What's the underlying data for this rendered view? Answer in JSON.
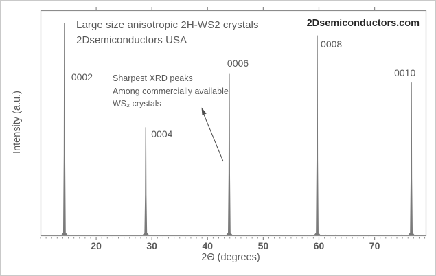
{
  "header": {
    "title_line1": "Large size anisotropic 2H-WS2 crystals",
    "title_line2": "2Dsemiconductors USA",
    "watermark": "2Dsemiconductors.com"
  },
  "annotation": {
    "line1": "Sharpest XRD peaks",
    "line2": "Among commercially available",
    "line3": "WS₂ crystals"
  },
  "chart_data": {
    "type": "line",
    "subtype": "xrd-powder-pattern",
    "title": "Large size anisotropic 2H-WS2 crystals — 2Dsemiconductors USA",
    "xlabel": "2Θ (degrees)",
    "ylabel": "Intensity (a.u.)",
    "xlim": [
      10,
      79.3
    ],
    "x_major_ticks": [
      20,
      30,
      40,
      50,
      60,
      70
    ],
    "x_minor_tick_step": 1,
    "y_ticks": [],
    "grid": false,
    "legend": false,
    "baseline_rel_intensity": 0.0,
    "peaks": [
      {
        "label": "0002",
        "two_theta": 14.3,
        "rel_intensity": 1.0
      },
      {
        "label": "0004",
        "two_theta": 28.9,
        "rel_intensity": 0.51
      },
      {
        "label": "0006",
        "two_theta": 43.9,
        "rel_intensity": 0.76
      },
      {
        "label": "0008",
        "two_theta": 59.7,
        "rel_intensity": 0.94
      },
      {
        "label": "0010",
        "two_theta": 76.6,
        "rel_intensity": 0.72
      }
    ]
  },
  "colors": {
    "axis": "#8c8c8c",
    "peak": "#7a7a7a",
    "baseline": "#9a9a9a",
    "text": "#595959",
    "arrow": "#4d4d4d",
    "watermark": "#262626",
    "background": "#ffffff"
  }
}
